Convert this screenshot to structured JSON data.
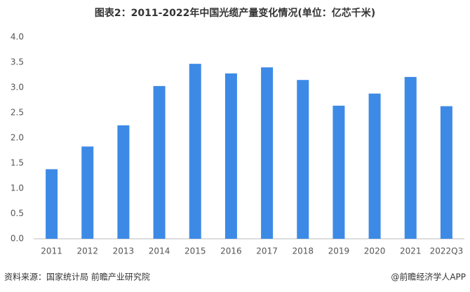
{
  "chart_data": {
    "type": "bar",
    "title": "图表2：2011-2022年中国光缆产量变化情况(单位：亿芯千米)",
    "categories": [
      "2011",
      "2012",
      "2013",
      "2014",
      "2015",
      "2016",
      "2017",
      "2018",
      "2019",
      "2020",
      "2021",
      "2022Q3"
    ],
    "values": [
      1.38,
      1.83,
      2.25,
      3.03,
      3.47,
      3.28,
      3.4,
      3.15,
      2.64,
      2.88,
      3.21,
      2.63
    ],
    "color": "#3d8ae6",
    "ylim": [
      0,
      4
    ],
    "yticks": [
      {
        "value": 0,
        "label": "0.0"
      },
      0.5,
      {
        "value": 1,
        "label": "1.0"
      },
      1.5,
      {
        "value": 2,
        "label": "2.0"
      },
      2.5,
      {
        "value": 3,
        "label": "3.0"
      },
      3.5,
      {
        "value": 4,
        "label": "4.0"
      }
    ],
    "grid": false,
    "source": "资料来源：国家统计局 前瞻产业研究院",
    "credit": "@前瞻经济学人APP"
  }
}
